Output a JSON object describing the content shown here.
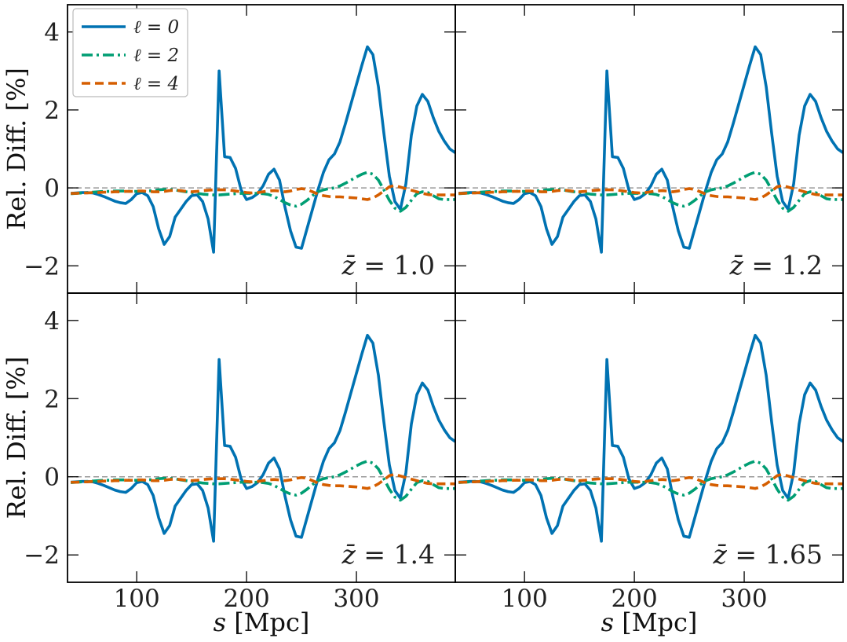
{
  "chart_data": {
    "type": "line",
    "layout": "2x2 panels, shared axes",
    "xlabel": "s [Mpc]",
    "ylabel": "Rel. Diff. [%]",
    "xlim": [
      37,
      390
    ],
    "ylim": [
      -2.7,
      4.7
    ],
    "xticks": [
      100,
      200,
      300
    ],
    "yticks": [
      -2,
      0,
      2,
      4
    ],
    "reference_line": 0,
    "legend": {
      "location": "upper left of first panel",
      "entries": [
        {
          "label": "ℓ = 0",
          "style": "solid",
          "color": "#0072B2"
        },
        {
          "label": "ℓ = 2",
          "style": "dashdot",
          "color": "#009E73"
        },
        {
          "label": "ℓ = 4",
          "style": "dashed",
          "color": "#D55E00"
        }
      ]
    },
    "x": [
      40,
      45,
      50,
      55,
      60,
      65,
      70,
      75,
      80,
      85,
      90,
      95,
      100,
      105,
      110,
      115,
      120,
      125,
      130,
      135,
      140,
      145,
      150,
      155,
      160,
      165,
      170,
      175,
      180,
      185,
      190,
      195,
      200,
      205,
      210,
      215,
      220,
      225,
      230,
      235,
      240,
      245,
      250,
      255,
      260,
      265,
      270,
      275,
      280,
      285,
      290,
      295,
      300,
      305,
      310,
      315,
      320,
      325,
      330,
      335,
      340,
      345,
      350,
      355,
      360,
      365,
      370,
      375,
      380,
      385,
      390
    ],
    "series": [
      {
        "name": "ℓ = 0",
        "values": [
          -0.14,
          -0.13,
          -0.12,
          -0.12,
          -0.13,
          -0.17,
          -0.22,
          -0.28,
          -0.34,
          -0.38,
          -0.4,
          -0.3,
          -0.15,
          -0.12,
          -0.2,
          -0.48,
          -1.05,
          -1.45,
          -1.25,
          -0.75,
          -0.55,
          -0.35,
          -0.2,
          -0.18,
          -0.35,
          -0.8,
          -1.65,
          3.0,
          0.8,
          0.78,
          0.5,
          -0.05,
          -0.3,
          -0.25,
          -0.15,
          0.05,
          0.35,
          0.48,
          0.2,
          -0.5,
          -1.1,
          -1.52,
          -1.55,
          -1.05,
          -0.55,
          -0.05,
          0.4,
          0.72,
          0.87,
          1.18,
          1.65,
          2.15,
          2.65,
          3.15,
          3.62,
          3.42,
          2.6,
          1.4,
          0.3,
          -0.35,
          -0.55,
          0.1,
          1.35,
          2.1,
          2.4,
          2.22,
          1.8,
          1.45,
          1.2,
          1.0,
          0.9
        ]
      },
      {
        "name": "ℓ = 2",
        "values": [
          -0.15,
          -0.14,
          -0.13,
          -0.12,
          -0.11,
          -0.1,
          -0.09,
          -0.09,
          -0.08,
          -0.08,
          -0.08,
          -0.09,
          -0.09,
          -0.09,
          -0.08,
          -0.07,
          -0.05,
          -0.04,
          -0.04,
          -0.05,
          -0.08,
          -0.1,
          -0.12,
          -0.14,
          -0.16,
          -0.17,
          -0.18,
          -0.18,
          -0.17,
          -0.16,
          -0.15,
          -0.14,
          -0.14,
          -0.14,
          -0.14,
          -0.15,
          -0.17,
          -0.22,
          -0.3,
          -0.38,
          -0.44,
          -0.47,
          -0.42,
          -0.32,
          -0.2,
          -0.1,
          -0.05,
          -0.02,
          0.0,
          0.05,
          0.12,
          0.2,
          0.28,
          0.35,
          0.4,
          0.35,
          0.2,
          -0.05,
          -0.32,
          -0.52,
          -0.6,
          -0.5,
          -0.32,
          -0.15,
          -0.1,
          -0.12,
          -0.2,
          -0.28,
          -0.3,
          -0.3,
          -0.3
        ]
      },
      {
        "name": "ℓ = 4",
        "values": [
          -0.14,
          -0.14,
          -0.13,
          -0.13,
          -0.12,
          -0.12,
          -0.11,
          -0.11,
          -0.1,
          -0.1,
          -0.09,
          -0.09,
          -0.08,
          -0.08,
          -0.09,
          -0.1,
          -0.1,
          -0.09,
          -0.07,
          -0.06,
          -0.07,
          -0.09,
          -0.1,
          -0.09,
          -0.07,
          -0.06,
          -0.05,
          -0.05,
          -0.05,
          -0.06,
          -0.08,
          -0.1,
          -0.12,
          -0.13,
          -0.12,
          -0.1,
          -0.08,
          -0.07,
          -0.08,
          -0.1,
          -0.08,
          -0.04,
          -0.02,
          -0.04,
          -0.1,
          -0.16,
          -0.2,
          -0.22,
          -0.23,
          -0.23,
          -0.24,
          -0.25,
          -0.26,
          -0.28,
          -0.3,
          -0.26,
          -0.18,
          -0.08,
          0.03,
          0.06,
          0.02,
          -0.02,
          -0.06,
          -0.1,
          -0.14,
          -0.17,
          -0.18,
          -0.18,
          -0.18,
          -0.18,
          -0.18
        ]
      }
    ],
    "panels": [
      {
        "id": "z-1.0",
        "label_prefix": "z̄ = ",
        "label_value": "1.0"
      },
      {
        "id": "z-1.2",
        "label_prefix": "z̄ = ",
        "label_value": "1.2"
      },
      {
        "id": "z-1.4",
        "label_prefix": "z̄ = ",
        "label_value": "1.4"
      },
      {
        "id": "z-1.65",
        "label_prefix": "z̄ = ",
        "label_value": "1.65"
      }
    ]
  }
}
